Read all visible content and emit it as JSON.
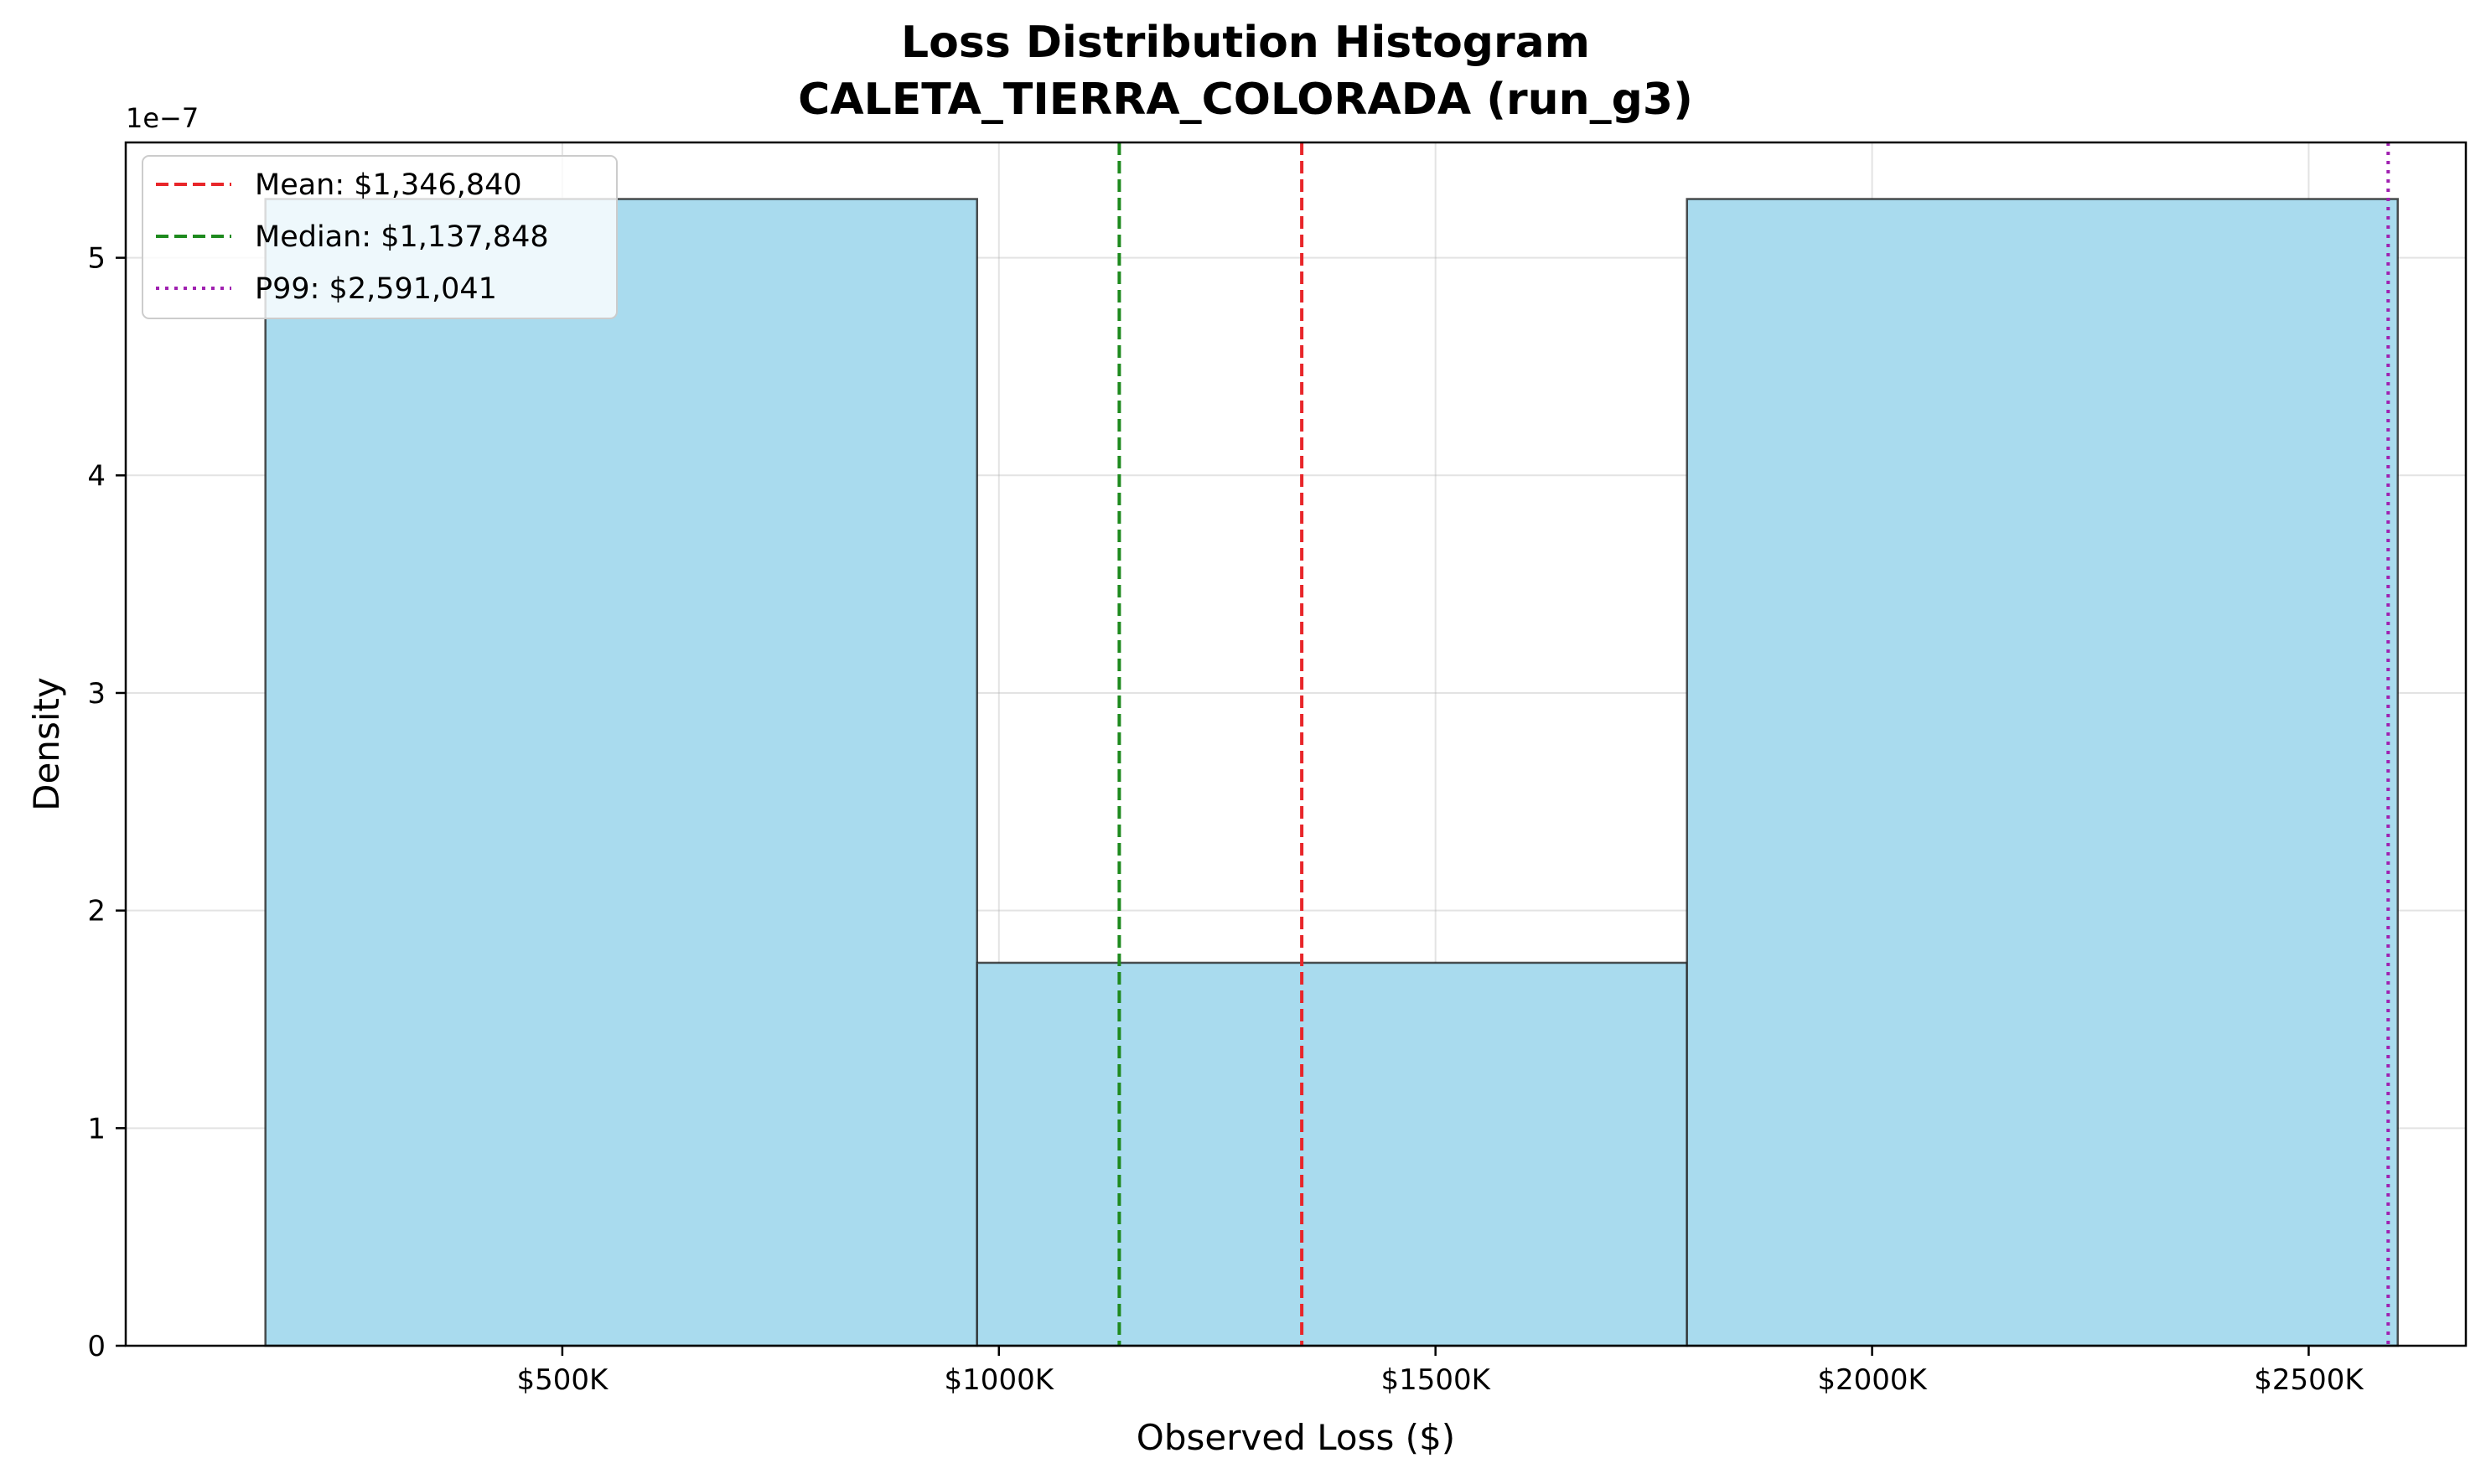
{
  "chart_data": {
    "type": "bar",
    "title": "Loss Distribution Histogram",
    "subtitle": "CALETA_TIERRA_COLORADA (run_g3)",
    "xlabel": "Observed Loss ($)",
    "ylabel": "Density",
    "y_offset_label": "1e−7",
    "xlim": [
      0,
      2680000
    ],
    "ylim": [
      0,
      5.53
    ],
    "grid": true,
    "legend_position": "top-left",
    "x_ticks": [
      {
        "value": 500000,
        "label": "$500K"
      },
      {
        "value": 1000000,
        "label": "$1000K"
      },
      {
        "value": 1500000,
        "label": "$1500K"
      },
      {
        "value": 2000000,
        "label": "$2000K"
      },
      {
        "value": 2500000,
        "label": "$2500K"
      }
    ],
    "y_ticks": [
      {
        "value": 0,
        "label": "0"
      },
      {
        "value": 1,
        "label": "1"
      },
      {
        "value": 2,
        "label": "2"
      },
      {
        "value": 3,
        "label": "3"
      },
      {
        "value": 4,
        "label": "4"
      },
      {
        "value": 5,
        "label": "5"
      }
    ],
    "bins": [
      {
        "x0": 160000,
        "x1": 975000,
        "density": 5.27
      },
      {
        "x0": 975000,
        "x1": 1788000,
        "density": 1.76
      },
      {
        "x0": 1788000,
        "x1": 2602000,
        "density": 5.27
      }
    ],
    "reference_lines": [
      {
        "value": 1346840,
        "label": "Mean: $1,346,840",
        "color": "#e8262a",
        "style": "dashed"
      },
      {
        "value": 1137848,
        "label": "Median: $1,137,848",
        "color": "#1e8a1e",
        "style": "dashed"
      },
      {
        "value": 2591041,
        "label": "P99: $2,591,041",
        "color": "#a020b0",
        "style": "dotted"
      }
    ],
    "bar_color": "#a9dbee",
    "bar_edge_color": "#222222"
  }
}
